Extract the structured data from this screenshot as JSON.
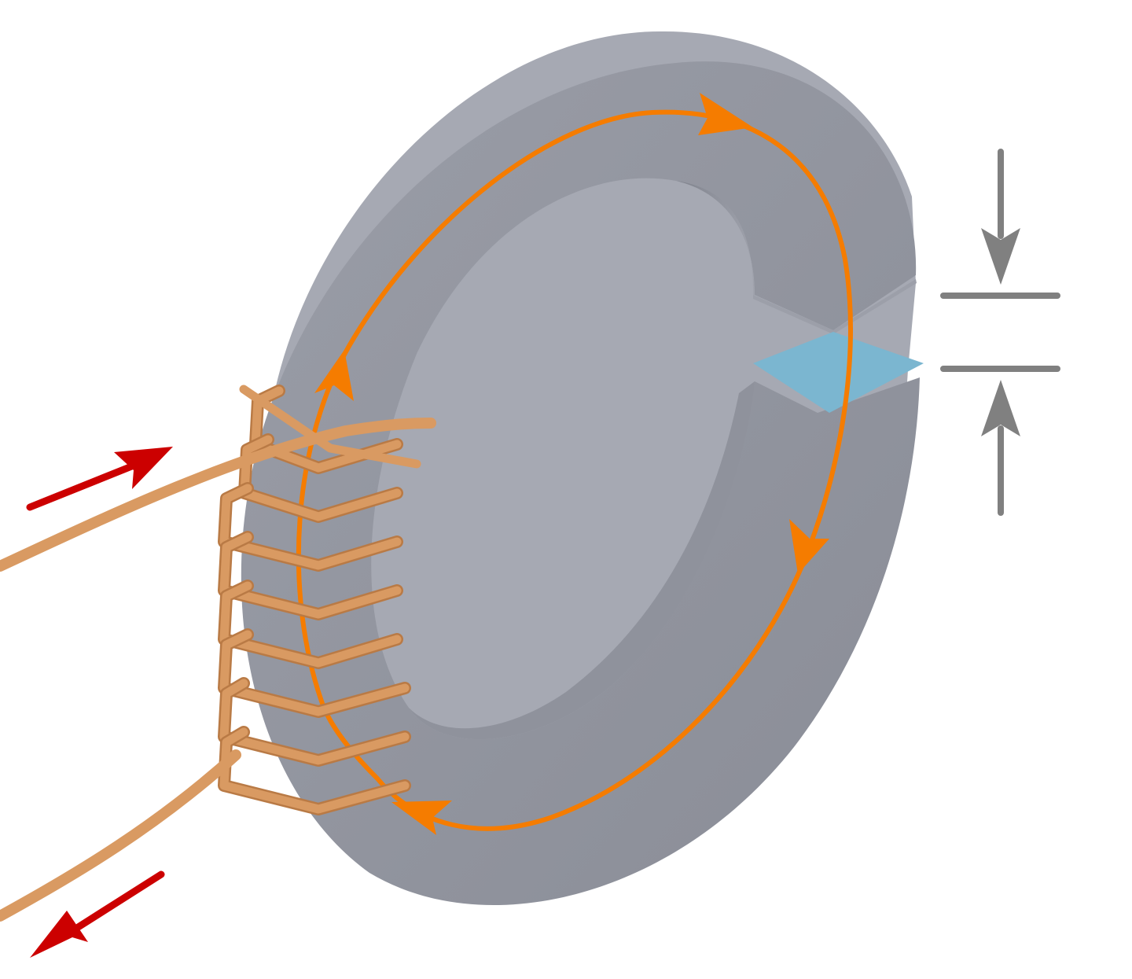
{
  "diagram": {
    "description_labels": [],
    "colors": {
      "background": "#ffffff",
      "core_face": "#9497a1",
      "core_face_dark": "#878a94",
      "core_top": "#a3a6b0",
      "core_inner": "#8c8f99",
      "air_gap": "#7bb6d0",
      "flux_path": "#f57c00",
      "winding": "#d99a62",
      "winding_shadow": "#b97a45",
      "current_arrow": "#cc0000",
      "gap_marker": "#808080"
    },
    "icons": {
      "flux_arrow": "arrowhead-icon",
      "current_in": "arrow-right-up-icon",
      "current_out": "arrow-left-down-icon",
      "gap_top": "arrow-down-icon",
      "gap_bottom": "arrow-up-icon"
    },
    "winding_turns": 8
  }
}
